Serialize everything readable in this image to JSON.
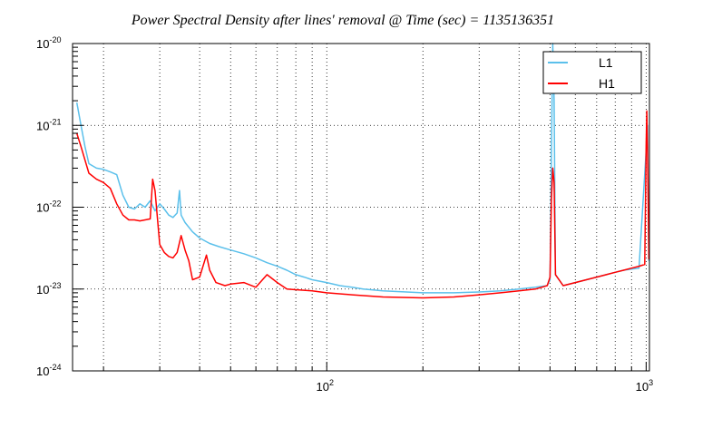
{
  "chart_data": {
    "type": "line",
    "title": "Power Spectral Density after lines' removal @ Time (sec) = 1135136351",
    "xlabel": "",
    "ylabel": "",
    "x_scale": "log",
    "y_scale": "log",
    "xlim": [
      16,
      1024
    ],
    "ylim": [
      1e-24,
      1e-20
    ],
    "grid": true,
    "x_ticks": [
      {
        "value": 100,
        "base": "10",
        "exp": "2"
      },
      {
        "value": 1000,
        "base": "10",
        "exp": "3"
      }
    ],
    "y_ticks": [
      {
        "value": 1e-24,
        "base": "10",
        "exp": "-24"
      },
      {
        "value": 1e-23,
        "base": "10",
        "exp": "-23"
      },
      {
        "value": 1e-22,
        "base": "10",
        "exp": "-22"
      },
      {
        "value": 1e-21,
        "base": "10",
        "exp": "-21"
      },
      {
        "value": 1e-20,
        "base": "10",
        "exp": "-20"
      }
    ],
    "legend_position": "top-right",
    "series": [
      {
        "name": "L1",
        "color": "#5bc0eb",
        "points": [
          [
            16.5,
            1.9e-21
          ],
          [
            17,
            1e-21
          ],
          [
            17.5,
            5.5e-22
          ],
          [
            18,
            3.4e-22
          ],
          [
            19,
            3e-22
          ],
          [
            20,
            2.9e-22
          ],
          [
            21,
            2.7e-22
          ],
          [
            22,
            2.5e-22
          ],
          [
            23,
            1.4e-22
          ],
          [
            24,
            1e-22
          ],
          [
            25,
            9.5e-23
          ],
          [
            26,
            1.1e-22
          ],
          [
            27,
            1e-22
          ],
          [
            28,
            1.2e-22
          ],
          [
            29,
            9e-23
          ],
          [
            30,
            1.1e-22
          ],
          [
            31,
            9.5e-23
          ],
          [
            32,
            8e-23
          ],
          [
            33,
            7.5e-23
          ],
          [
            34,
            8.5e-23
          ],
          [
            34.6,
            1.6e-22
          ],
          [
            35,
            8e-23
          ],
          [
            36,
            6.5e-23
          ],
          [
            38,
            5e-23
          ],
          [
            40,
            4.2e-23
          ],
          [
            43,
            3.6e-23
          ],
          [
            46,
            3.3e-23
          ],
          [
            50,
            3e-23
          ],
          [
            55,
            2.7e-23
          ],
          [
            60,
            2.4e-23
          ],
          [
            65,
            2.1e-23
          ],
          [
            70,
            1.9e-23
          ],
          [
            75,
            1.7e-23
          ],
          [
            80,
            1.5e-23
          ],
          [
            85,
            1.4e-23
          ],
          [
            90,
            1.3e-23
          ],
          [
            100,
            1.2e-23
          ],
          [
            110,
            1.1e-23
          ],
          [
            120,
            1.05e-23
          ],
          [
            130,
            1e-23
          ],
          [
            150,
            9.5e-24
          ],
          [
            200,
            9e-24
          ],
          [
            250,
            9e-24
          ],
          [
            300,
            9.2e-24
          ],
          [
            350,
            9.5e-24
          ],
          [
            400,
            1e-23
          ],
          [
            450,
            1.05e-23
          ],
          [
            490,
            1.1e-23
          ],
          [
            500,
            1.3e-23
          ],
          [
            505,
            4e-22
          ],
          [
            510,
            1e-20
          ],
          [
            515,
            2e-21
          ],
          [
            520,
            1.5e-23
          ],
          [
            550,
            1.1e-23
          ],
          [
            600,
            1.2e-23
          ],
          [
            650,
            1.3e-23
          ],
          [
            700,
            1.4e-23
          ],
          [
            750,
            1.5e-23
          ],
          [
            800,
            1.6e-23
          ],
          [
            850,
            1.7e-23
          ],
          [
            900,
            1.75e-23
          ],
          [
            950,
            1.8e-23
          ],
          [
            1000,
            5e-22
          ],
          [
            1010,
            1e-21
          ],
          [
            1020,
            2.2e-23
          ]
        ]
      },
      {
        "name": "H1",
        "color": "#ff0000",
        "points": [
          [
            16.5,
            8e-22
          ],
          [
            17,
            5.5e-22
          ],
          [
            18,
            2.6e-22
          ],
          [
            19,
            2.2e-22
          ],
          [
            20,
            2e-22
          ],
          [
            21,
            1.7e-22
          ],
          [
            22,
            1.1e-22
          ],
          [
            23,
            8e-23
          ],
          [
            24,
            7e-23
          ],
          [
            25,
            7e-23
          ],
          [
            26,
            6.8e-23
          ],
          [
            27,
            7e-23
          ],
          [
            28,
            7.2e-23
          ],
          [
            28.5,
            2.2e-22
          ],
          [
            29,
            1.6e-22
          ],
          [
            30,
            3.5e-23
          ],
          [
            31,
            2.8e-23
          ],
          [
            32,
            2.5e-23
          ],
          [
            33,
            2.4e-23
          ],
          [
            34,
            2.8e-23
          ],
          [
            35,
            4.5e-23
          ],
          [
            36,
            3e-23
          ],
          [
            37,
            2.2e-23
          ],
          [
            38,
            1.3e-23
          ],
          [
            40,
            1.4e-23
          ],
          [
            42,
            2.6e-23
          ],
          [
            43,
            1.7e-23
          ],
          [
            45,
            1.2e-23
          ],
          [
            48,
            1.1e-23
          ],
          [
            50,
            1.15e-23
          ],
          [
            55,
            1.2e-23
          ],
          [
            60,
            1.05e-23
          ],
          [
            65,
            1.5e-23
          ],
          [
            70,
            1.2e-23
          ],
          [
            75,
            1e-23
          ],
          [
            80,
            9.8e-24
          ],
          [
            90,
            9.5e-24
          ],
          [
            100,
            9e-24
          ],
          [
            120,
            8.5e-24
          ],
          [
            150,
            8e-24
          ],
          [
            200,
            7.8e-24
          ],
          [
            250,
            8e-24
          ],
          [
            300,
            8.5e-24
          ],
          [
            350,
            9e-24
          ],
          [
            400,
            9.5e-24
          ],
          [
            450,
            1e-23
          ],
          [
            490,
            1.1e-23
          ],
          [
            500,
            1.4e-23
          ],
          [
            505,
            1.2e-22
          ],
          [
            510,
            3e-22
          ],
          [
            515,
            2e-22
          ],
          [
            520,
            1.5e-23
          ],
          [
            550,
            1.1e-23
          ],
          [
            600,
            1.2e-23
          ],
          [
            650,
            1.3e-23
          ],
          [
            700,
            1.4e-23
          ],
          [
            750,
            1.5e-23
          ],
          [
            800,
            1.6e-23
          ],
          [
            850,
            1.7e-23
          ],
          [
            900,
            1.8e-23
          ],
          [
            950,
            1.9e-23
          ],
          [
            990,
            2e-23
          ],
          [
            1000,
            6e-22
          ],
          [
            1005,
            1.5e-21
          ],
          [
            1010,
            5e-22
          ],
          [
            1020,
            2.3e-23
          ]
        ]
      }
    ]
  }
}
